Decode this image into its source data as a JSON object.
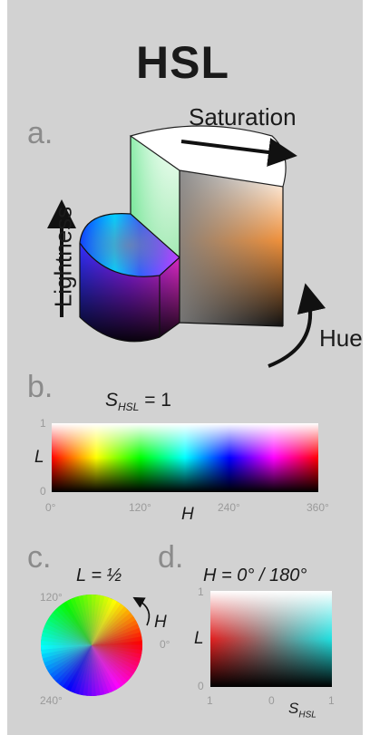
{
  "title": "HSL",
  "sections": {
    "a": "a.",
    "b": "b.",
    "c": "c.",
    "d": "d."
  },
  "cylinder": {
    "saturation_label": "Saturation",
    "lightness_label": "Lightness",
    "hue_label": "Hue"
  },
  "panel_b": {
    "equation_symbol": "S",
    "equation_subscript": "HSL",
    "equation_rhs": "= 1",
    "y_axis_label": "L",
    "x_axis_label": "H",
    "y_ticks": [
      "1",
      "0"
    ],
    "x_ticks": [
      "0°",
      "120°",
      "240°",
      "360°"
    ]
  },
  "panel_c": {
    "equation": "L = ½",
    "hue_label": "H",
    "angles": [
      "120°",
      "0°",
      "240°"
    ]
  },
  "panel_d": {
    "equation": "H = 0° / 180°",
    "y_axis_label": "L",
    "y_ticks": [
      "1",
      "0"
    ],
    "x_ticks": [
      "1",
      "0",
      "1"
    ],
    "x_axis_symbol": "S",
    "x_axis_subscript": "HSL"
  },
  "colors": {
    "background": "#d2d2d2",
    "page": "#ffffff",
    "text": "#1a1a1a",
    "section_letters": "#8b8b8b"
  }
}
